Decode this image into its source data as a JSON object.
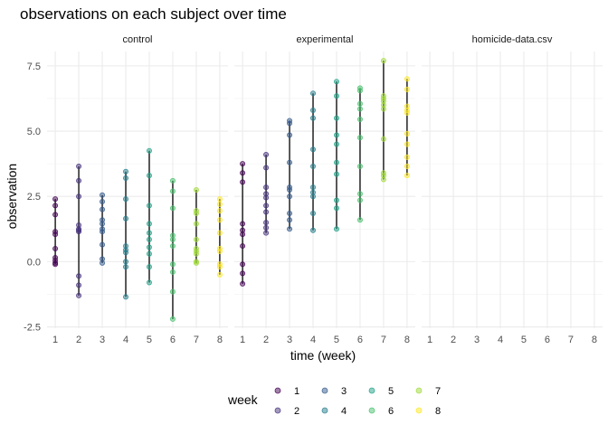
{
  "chart_data": {
    "type": "scatter",
    "title": "observations on each subject over time",
    "xlabel": "time (week)",
    "ylabel": "observation",
    "x_ticks": [
      1,
      2,
      3,
      4,
      5,
      6,
      7,
      8
    ],
    "y_ticks": [
      -2.5,
      0,
      2.5,
      5,
      7.5
    ],
    "y_tick_labels": [
      "-2.5",
      "0.0",
      "2.5",
      "5.0",
      "7.5"
    ],
    "ylim": [
      -2.55,
      8.05
    ],
    "xlim": [
      0.65,
      8.35
    ],
    "grid": true,
    "legend": {
      "title": "week",
      "placement": "bottom",
      "entries": [
        {
          "label": "1",
          "color": "#440154"
        },
        {
          "label": "2",
          "color": "#46337E"
        },
        {
          "label": "3",
          "color": "#365C8D"
        },
        {
          "label": "4",
          "color": "#277F8E"
        },
        {
          "label": "5",
          "color": "#1FA187"
        },
        {
          "label": "6",
          "color": "#4AC16D"
        },
        {
          "label": "7",
          "color": "#A0DA39"
        },
        {
          "label": "8",
          "color": "#FDE725"
        }
      ]
    },
    "panels": [
      {
        "name": "control",
        "points": [
          {
            "week": 1,
            "values": [
              2.4,
              2.15,
              1.8,
              1.15,
              1.05,
              0.5,
              0.15,
              0.05,
              -0.05,
              -0.1
            ]
          },
          {
            "week": 2,
            "values": [
              3.65,
              3.1,
              2.5,
              1.4,
              1.25,
              1.2,
              1.15,
              -0.55,
              -0.9,
              -1.3
            ]
          },
          {
            "week": 3,
            "values": [
              2.55,
              2.3,
              1.6,
              1.45,
              1.25,
              1.15,
              0.65,
              0.1,
              -0.05,
              2.0
            ]
          },
          {
            "week": 4,
            "values": [
              3.45,
              3.2,
              2.4,
              1.65,
              0.6,
              0.45,
              0.35,
              0.0,
              -0.2,
              -1.35
            ]
          },
          {
            "week": 5,
            "values": [
              4.25,
              3.3,
              2.15,
              1.45,
              1.1,
              0.85,
              0.55,
              0.3,
              -0.2,
              -0.8
            ]
          },
          {
            "week": 6,
            "values": [
              3.1,
              2.7,
              2.05,
              1.0,
              0.85,
              0.6,
              -0.1,
              -0.4,
              -1.15,
              -2.2
            ]
          },
          {
            "week": 7,
            "values": [
              2.75,
              1.95,
              1.85,
              1.45,
              0.85,
              0.5,
              0.4,
              0.3,
              0.0,
              -0.05
            ]
          },
          {
            "week": 8,
            "values": [
              2.4,
              1.95,
              1.6,
              1.1,
              0.5,
              0.4,
              -0.1,
              -0.2,
              -0.5,
              2.2
            ]
          }
        ]
      },
      {
        "name": "experimental",
        "points": [
          {
            "week": 1,
            "values": [
              3.75,
              3.4,
              3.05,
              1.45,
              1.2,
              1.05,
              0.6,
              -0.1,
              -0.45,
              -0.85
            ]
          },
          {
            "week": 2,
            "values": [
              4.1,
              3.6,
              2.85,
              2.6,
              2.45,
              2.15,
              1.9,
              1.5,
              1.3,
              1.1
            ]
          },
          {
            "week": 3,
            "values": [
              5.4,
              5.3,
              4.85,
              3.8,
              2.85,
              2.75,
              2.5,
              1.85,
              1.6,
              1.25
            ]
          },
          {
            "week": 4,
            "values": [
              6.45,
              5.8,
              5.5,
              4.3,
              3.65,
              2.85,
              2.65,
              2.5,
              1.85,
              1.2
            ]
          },
          {
            "week": 5,
            "values": [
              6.9,
              6.35,
              5.5,
              4.85,
              4.5,
              3.8,
              3.35,
              2.35,
              2.05,
              1.25
            ]
          },
          {
            "week": 6,
            "values": [
              6.65,
              6.55,
              6.05,
              5.85,
              5.45,
              4.75,
              3.65,
              2.6,
              2.35,
              1.6
            ]
          },
          {
            "week": 7,
            "values": [
              7.7,
              6.35,
              6.15,
              6.0,
              5.85,
              4.7,
              3.4,
              3.3,
              3.15,
              6.25
            ]
          },
          {
            "week": 8,
            "values": [
              7.0,
              6.6,
              5.95,
              5.8,
              5.7,
              4.9,
              4.5,
              4.0,
              3.65,
              3.3
            ]
          }
        ]
      },
      {
        "name": "homicide-data.csv",
        "points": []
      }
    ]
  }
}
